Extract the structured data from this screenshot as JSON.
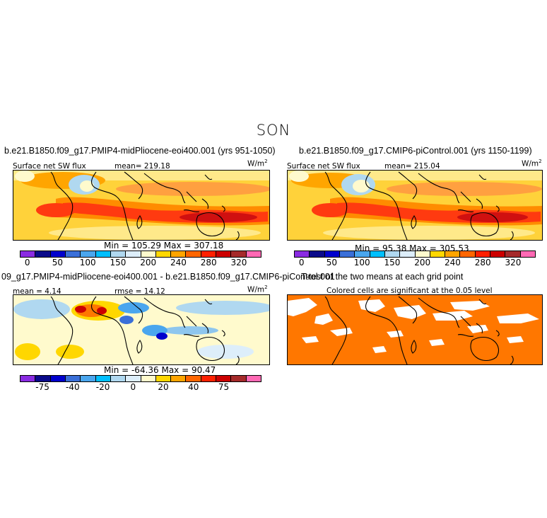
{
  "figure": {
    "season": "SON"
  },
  "units_text": "W/m",
  "units_sup": "2",
  "panels": {
    "p1": {
      "title": "b.e21.B1850.f09_g17.PMIP4-midPliocene-eoi400.001 (yrs 951-1050)",
      "var_label": "Surface net SW flux",
      "mean_text": "mean= 219.18",
      "minmax_text": "Min = 105.29 Max = 307.18"
    },
    "p2": {
      "title": "b.e21.B1850.f09_g17.CMIP6-piControl.001 (yrs 1150-1199)",
      "var_label": "Surface net SW flux",
      "mean_text": "mean= 215.04",
      "minmax_text": "Min =  95.38 Max = 305.53"
    },
    "p3": {
      "title": "09_g17.PMIP4-midPliocene-eoi400.001 - b.e21.B1850.f09_g17.CMIP6-piControl.001",
      "mean_text": "mean =   4.14",
      "rmse_text": "rmse =  14.12",
      "minmax_text": "Min = -64.36 Max =  90.47"
    },
    "p4": {
      "title": "T-test of the two means at each grid point",
      "subtitle": "Colored cells are significant at the 0.05 level"
    }
  },
  "colorbars": {
    "abs": {
      "colors": [
        "#8a2be2",
        "#0a0a8a",
        "#0000cd",
        "#3a6fd8",
        "#4aa6ee",
        "#00bfff",
        "#b0d8f0",
        "#ddeefa",
        "#fffacd",
        "#ffd700",
        "#ffa500",
        "#ff6600",
        "#ff2000",
        "#cc0000",
        "#a52a2a",
        "#ff69b4"
      ],
      "tick_labels": [
        "0",
        "50",
        "100",
        "150",
        "200",
        "240",
        "280",
        "320"
      ]
    },
    "diff": {
      "colors": [
        "#8a2be2",
        "#0a0a8a",
        "#0000cd",
        "#3a6fd8",
        "#4aa6ee",
        "#00bfff",
        "#b0d8f0",
        "#ddeefa",
        "#fffacd",
        "#ffd700",
        "#ffa500",
        "#ff6600",
        "#ff2000",
        "#cc0000",
        "#a52a2a",
        "#ff69b4"
      ],
      "tick_labels": [
        "-75",
        "-40",
        "-20",
        "0",
        "20",
        "40",
        "75"
      ]
    }
  },
  "chart_data": [
    {
      "type": "heatmap",
      "title": "b.e21.B1850.f09_g17.PMIP4-midPliocene-eoi400.001 (yrs 951-1050)",
      "variable": "Surface net SW flux",
      "units": "W/m2",
      "mean": 219.18,
      "min": 105.29,
      "max": 307.18,
      "contour_levels": [
        0,
        50,
        100,
        150,
        200,
        240,
        280,
        320
      ]
    },
    {
      "type": "heatmap",
      "title": "b.e21.B1850.f09_g17.CMIP6-piControl.001 (yrs 1150-1199)",
      "variable": "Surface net SW flux",
      "units": "W/m2",
      "mean": 215.04,
      "min": 95.38,
      "max": 305.53,
      "contour_levels": [
        0,
        50,
        100,
        150,
        200,
        240,
        280,
        320
      ]
    },
    {
      "type": "heatmap",
      "title": "09_g17.PMIP4-midPliocene-eoi400.001 - b.e21.B1850.f09_g17.CMIP6-piControl.001",
      "units": "W/m2",
      "mean": 4.14,
      "rmse": 14.12,
      "min": -64.36,
      "max": 90.47,
      "contour_levels": [
        -75,
        -40,
        -20,
        0,
        20,
        40,
        75
      ]
    },
    {
      "type": "heatmap",
      "title": "T-test of the two means at each grid point",
      "subtitle": "Colored cells are significant at the 0.05 level",
      "significance_level": 0.05,
      "significant_color": "#ff7700"
    }
  ]
}
